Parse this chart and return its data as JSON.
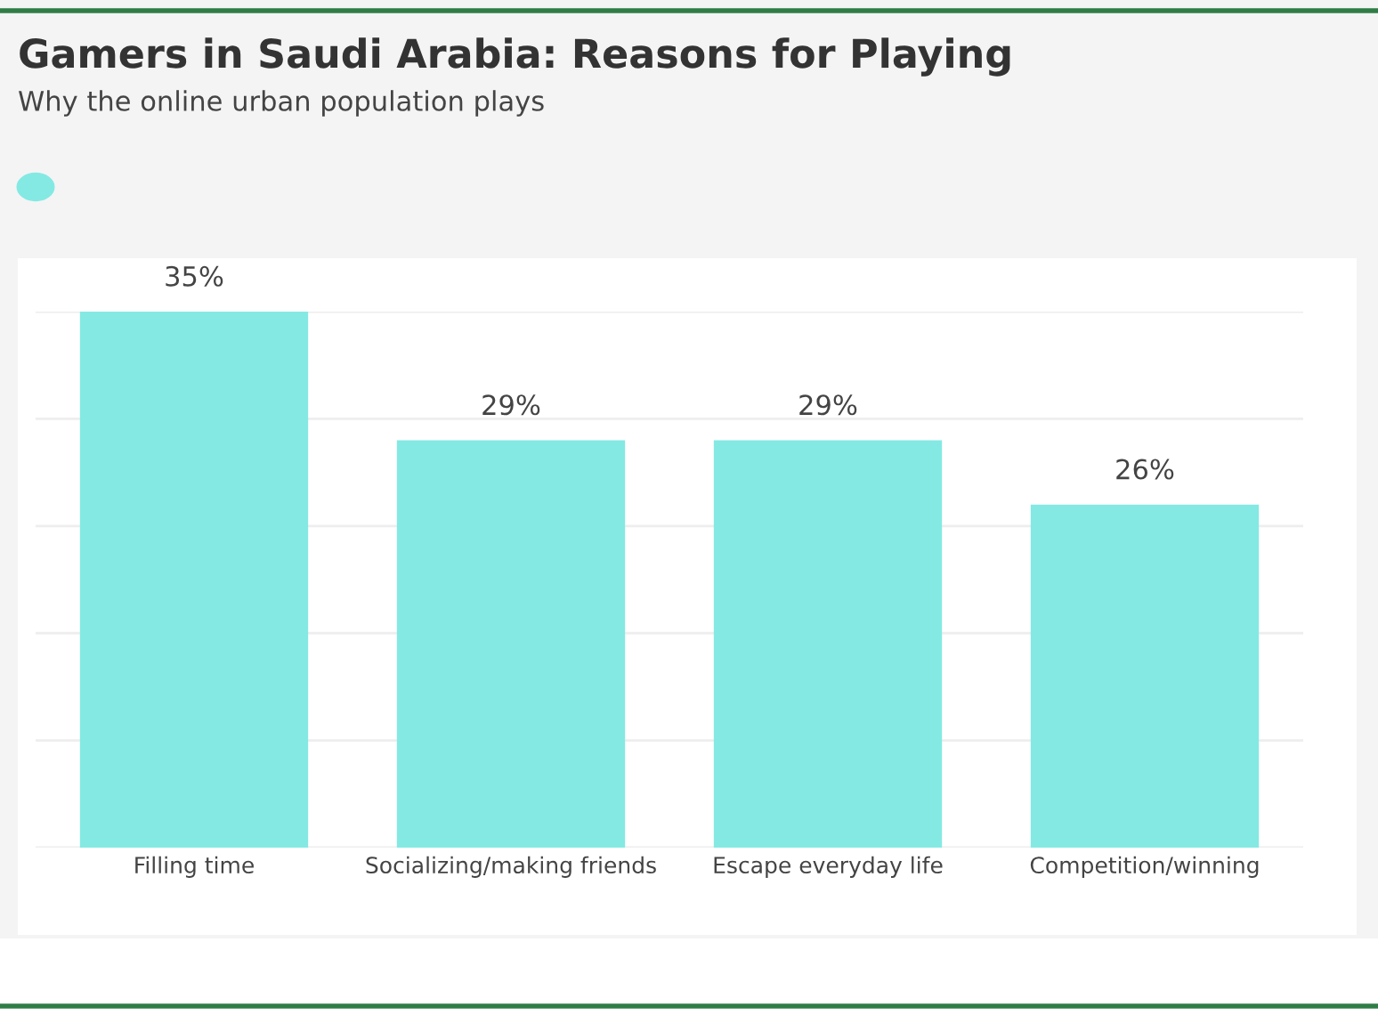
{
  "chart_data": {
    "type": "bar",
    "title": "Gamers in Saudi Arabia: Reasons for Playing",
    "subtitle": "Why the online urban population plays",
    "categories": [
      "Filling time",
      "Socializing/making friends",
      "Escape everyday life",
      "Competition/winning"
    ],
    "values": [
      35,
      29,
      29,
      26
    ],
    "color": "#84e9e3",
    "value_labels": [
      "35%",
      "29%",
      "29%",
      "26%"
    ],
    "ylim": [
      10,
      35
    ],
    "yticks": [
      {
        "value": 10,
        "label": null
      },
      {
        "value": 15,
        "label": null
      },
      {
        "value": 20,
        "label": null
      },
      {
        "value": 25,
        "label": null
      },
      {
        "value": 30,
        "label": null
      },
      {
        "value": 35,
        "label": null
      }
    ],
    "grid": "y",
    "tick_labels": "x"
  }
}
